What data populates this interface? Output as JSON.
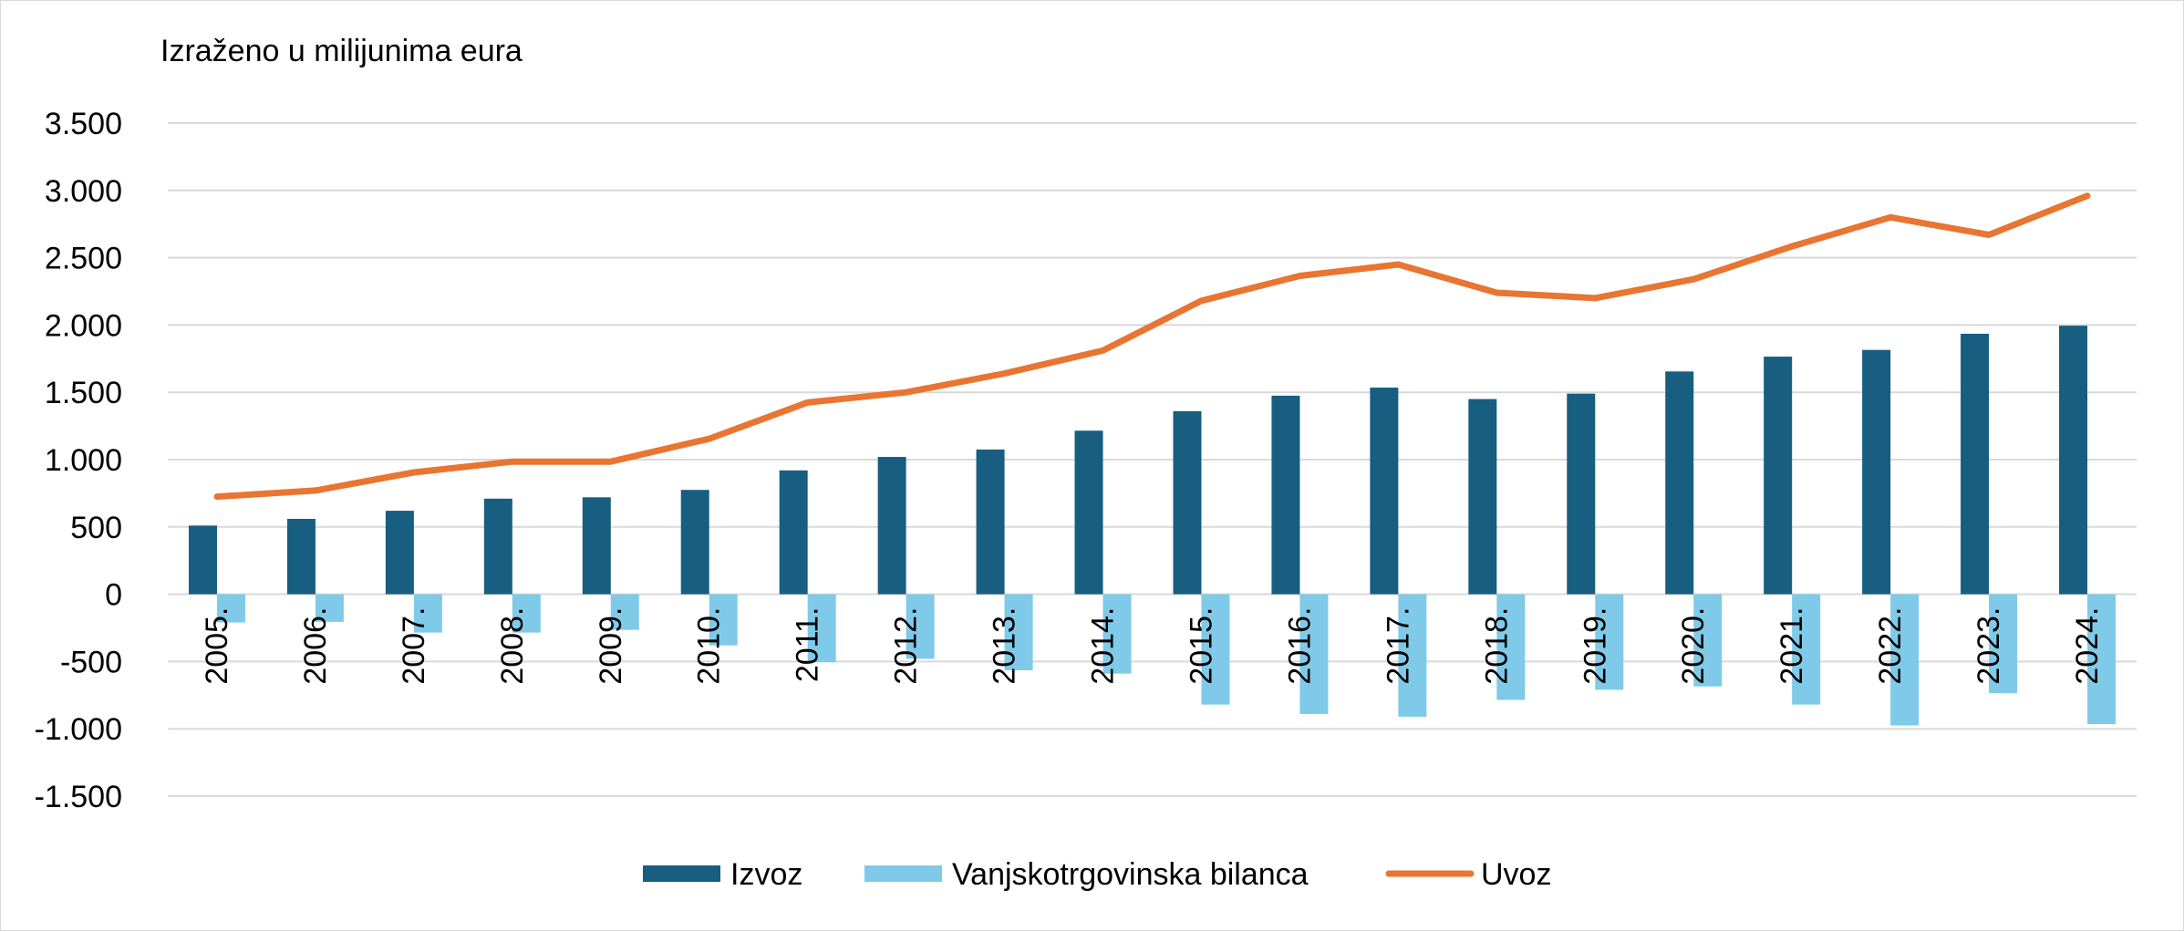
{
  "chart_data": {
    "type": "bar",
    "title": "",
    "unit_label": "Izraženo u milijunima eura",
    "xlabel": "",
    "ylabel": "",
    "categories": [
      "2005.",
      "2006.",
      "2007.",
      "2008.",
      "2009.",
      "2010.",
      "2011.",
      "2012.",
      "2013.",
      "2014.",
      "2015.",
      "2016.",
      "2017.",
      "2018.",
      "2019.",
      "2020.",
      "2021.",
      "2022.",
      "2023.",
      "2024."
    ],
    "ylim": [
      -1500,
      3500
    ],
    "yticks": [
      3500,
      3000,
      2500,
      2000,
      1500,
      1000,
      500,
      0,
      -500,
      -1000,
      -1500
    ],
    "ytick_labels": [
      "3.500",
      "3.000",
      "2.500",
      "2.000",
      "1.500",
      "1.000",
      "500",
      "0",
      "-500",
      "-1.000",
      "-1.500"
    ],
    "grid": true,
    "legend_position": "bottom",
    "series": [
      {
        "name": "Izvoz",
        "type": "bar",
        "color": "#175E80",
        "values": [
          510,
          560,
          620,
          710,
          720,
          775,
          920,
          1020,
          1075,
          1215,
          1360,
          1475,
          1535,
          1450,
          1490,
          1655,
          1765,
          1815,
          1935,
          1995
        ]
      },
      {
        "name": "Vanjskotrgovinska bilanca",
        "type": "bar",
        "color": "#7FCAE8",
        "values": [
          -210,
          -205,
          -285,
          -285,
          -265,
          -380,
          -505,
          -480,
          -565,
          -590,
          -820,
          -890,
          -910,
          -785,
          -710,
          -685,
          -820,
          -975,
          -735,
          -965
        ]
      },
      {
        "name": "Uvoz",
        "type": "line",
        "color": "#E87532",
        "values": [
          725,
          770,
          905,
          985,
          985,
          1155,
          1425,
          1500,
          1640,
          1810,
          2180,
          2365,
          2450,
          2240,
          2200,
          2340,
          2585,
          2800,
          2670,
          2960
        ]
      }
    ]
  }
}
